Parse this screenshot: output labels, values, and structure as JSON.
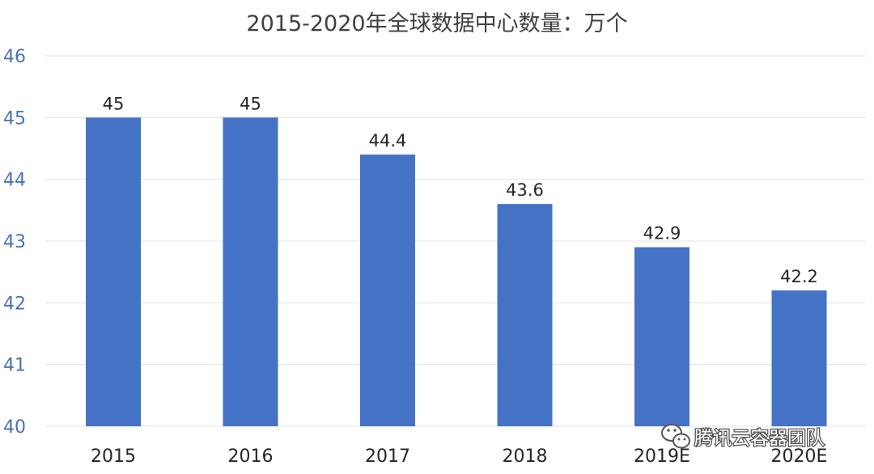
{
  "chart_data": {
    "type": "bar",
    "title": "2015-2020年全球数据中心数量：万个",
    "categories": [
      "2015",
      "2016",
      "2017",
      "2018",
      "2019E",
      "2020E"
    ],
    "values": [
      45,
      45,
      44.4,
      43.6,
      42.9,
      42.2
    ],
    "data_labels": [
      "45",
      "45",
      "44.4",
      "43.6",
      "42.9",
      "42.2"
    ],
    "ylim": [
      40,
      46
    ],
    "yticks": [
      "40",
      "41",
      "42",
      "43",
      "44",
      "45",
      "46"
    ],
    "xlabel": "",
    "ylabel": "",
    "grid": true,
    "legend": "none",
    "bar_color": "#4472c4"
  },
  "watermark": {
    "text": "腾讯云容器团队",
    "icon": "wechat-icon"
  }
}
